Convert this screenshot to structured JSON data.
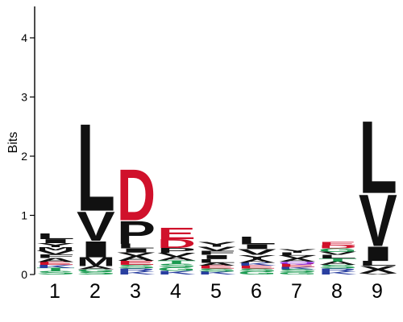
{
  "chart_data": {
    "type": "sequence-logo",
    "ylabel": "Bits",
    "ylim": [
      0,
      4.5
    ],
    "yticks": [
      "0",
      "1",
      "2",
      "3",
      "4"
    ],
    "positions": [
      "1",
      "2",
      "3",
      "4",
      "5",
      "6",
      "7",
      "8",
      "9"
    ],
    "colors": {
      "hydrophobic": "#111111",
      "acidic": "#d0112b",
      "polar": "#1a9a50",
      "basic": "#2a3fa0",
      "neutral": "#8a2be2"
    },
    "stacks": [
      [
        {
          "letter": "S",
          "height": 0.06,
          "color": "#1a9a50"
        },
        {
          "letter": "T",
          "height": 0.05,
          "color": "#1a9a50"
        },
        {
          "letter": "K",
          "height": 0.05,
          "color": "#2a3fa0"
        },
        {
          "letter": "E",
          "height": 0.05,
          "color": "#d0112b"
        },
        {
          "letter": "A",
          "height": 0.07,
          "color": "#111111"
        },
        {
          "letter": "F",
          "height": 0.06,
          "color": "#111111"
        },
        {
          "letter": "V",
          "height": 0.07,
          "color": "#111111"
        },
        {
          "letter": "M",
          "height": 0.05,
          "color": "#111111"
        },
        {
          "letter": "Y",
          "height": 0.07,
          "color": "#111111"
        },
        {
          "letter": "I",
          "height": 0.07,
          "color": "#111111"
        },
        {
          "letter": "L",
          "height": 0.1,
          "color": "#111111"
        }
      ],
      [
        {
          "letter": "S",
          "height": 0.05,
          "color": "#1a9a50"
        },
        {
          "letter": "G",
          "height": 0.04,
          "color": "#1a9a50"
        },
        {
          "letter": "A",
          "height": 0.05,
          "color": "#111111"
        },
        {
          "letter": "M",
          "height": 0.15,
          "color": "#111111"
        },
        {
          "letter": "I",
          "height": 0.28,
          "color": "#111111"
        },
        {
          "letter": "V",
          "height": 0.51,
          "color": "#111111"
        },
        {
          "letter": "L",
          "height": 1.52,
          "color": "#111111"
        }
      ],
      [
        {
          "letter": "K",
          "height": 0.05,
          "color": "#2a3fa0"
        },
        {
          "letter": "R",
          "height": 0.05,
          "color": "#2a3fa0"
        },
        {
          "letter": "S",
          "height": 0.06,
          "color": "#1a9a50"
        },
        {
          "letter": "E",
          "height": 0.07,
          "color": "#d0112b"
        },
        {
          "letter": "A",
          "height": 0.08,
          "color": "#111111"
        },
        {
          "letter": "V",
          "height": 0.06,
          "color": "#111111"
        },
        {
          "letter": "I",
          "height": 0.07,
          "color": "#111111"
        },
        {
          "letter": "L",
          "height": 0.08,
          "color": "#111111"
        },
        {
          "letter": "P",
          "height": 0.4,
          "color": "#111111"
        },
        {
          "letter": "D",
          "height": 0.89,
          "color": "#d0112b"
        }
      ],
      [
        {
          "letter": "K",
          "height": 0.06,
          "color": "#2a3fa0"
        },
        {
          "letter": "G",
          "height": 0.06,
          "color": "#1a9a50"
        },
        {
          "letter": "S",
          "height": 0.06,
          "color": "#1a9a50"
        },
        {
          "letter": "T",
          "height": 0.06,
          "color": "#1a9a50"
        },
        {
          "letter": "A",
          "height": 0.06,
          "color": "#111111"
        },
        {
          "letter": "V",
          "height": 0.07,
          "color": "#111111"
        },
        {
          "letter": "P",
          "height": 0.08,
          "color": "#111111"
        },
        {
          "letter": "D",
          "height": 0.15,
          "color": "#d0112b"
        },
        {
          "letter": "E",
          "height": 0.2,
          "color": "#d0112b"
        }
      ],
      [
        {
          "letter": "K",
          "height": 0.05,
          "color": "#2a3fa0"
        },
        {
          "letter": "S",
          "height": 0.05,
          "color": "#1a9a50"
        },
        {
          "letter": "E",
          "height": 0.05,
          "color": "#d0112b"
        },
        {
          "letter": "A",
          "height": 0.05,
          "color": "#111111"
        },
        {
          "letter": "L",
          "height": 0.06,
          "color": "#111111"
        },
        {
          "letter": "I",
          "height": 0.07,
          "color": "#111111"
        },
        {
          "letter": "F",
          "height": 0.07,
          "color": "#111111"
        },
        {
          "letter": "V",
          "height": 0.07,
          "color": "#111111"
        },
        {
          "letter": "Y",
          "height": 0.08,
          "color": "#111111"
        }
      ],
      [
        {
          "letter": "G",
          "height": 0.05,
          "color": "#1a9a50"
        },
        {
          "letter": "S",
          "height": 0.05,
          "color": "#1a9a50"
        },
        {
          "letter": "E",
          "height": 0.05,
          "color": "#d0112b"
        },
        {
          "letter": "K",
          "height": 0.05,
          "color": "#2a3fa0"
        },
        {
          "letter": "A",
          "height": 0.06,
          "color": "#111111"
        },
        {
          "letter": "Y",
          "height": 0.07,
          "color": "#111111"
        },
        {
          "letter": "V",
          "height": 0.1,
          "color": "#111111"
        },
        {
          "letter": "I",
          "height": 0.08,
          "color": "#111111"
        },
        {
          "letter": "L",
          "height": 0.14,
          "color": "#111111"
        }
      ],
      [
        {
          "letter": "G",
          "height": 0.04,
          "color": "#1a9a50"
        },
        {
          "letter": "S",
          "height": 0.05,
          "color": "#1a9a50"
        },
        {
          "letter": "K",
          "height": 0.04,
          "color": "#2a3fa0"
        },
        {
          "letter": "E",
          "height": 0.05,
          "color": "#d0112b"
        },
        {
          "letter": "Q",
          "height": 0.04,
          "color": "#8a2be2"
        },
        {
          "letter": "A",
          "height": 0.05,
          "color": "#111111"
        },
        {
          "letter": "V",
          "height": 0.05,
          "color": "#111111"
        },
        {
          "letter": "L",
          "height": 0.05,
          "color": "#111111"
        },
        {
          "letter": "Y",
          "height": 0.06,
          "color": "#111111"
        }
      ],
      [
        {
          "letter": "K",
          "height": 0.05,
          "color": "#2a3fa0"
        },
        {
          "letter": "R",
          "height": 0.05,
          "color": "#2a3fa0"
        },
        {
          "letter": "S",
          "height": 0.06,
          "color": "#1a9a50"
        },
        {
          "letter": "A",
          "height": 0.06,
          "color": "#111111"
        },
        {
          "letter": "T",
          "height": 0.05,
          "color": "#1a9a50"
        },
        {
          "letter": "L",
          "height": 0.06,
          "color": "#111111"
        },
        {
          "letter": "V",
          "height": 0.05,
          "color": "#111111"
        },
        {
          "letter": "G",
          "height": 0.06,
          "color": "#1a9a50"
        },
        {
          "letter": "D",
          "height": 0.05,
          "color": "#d0112b"
        },
        {
          "letter": "E",
          "height": 0.06,
          "color": "#d0112b"
        }
      ],
      [
        {
          "letter": "V",
          "height": 0.02,
          "color": "#111111"
        },
        {
          "letter": "X",
          "height": 0.13,
          "color": "#111111"
        },
        {
          "letter": "L",
          "height": 0.08,
          "color": "#111111"
        },
        {
          "letter": "I",
          "height": 0.25,
          "color": "#111111"
        },
        {
          "letter": "V",
          "height": 0.9,
          "color": "#111111"
        },
        {
          "letter": "L",
          "height": 1.26,
          "color": "#111111"
        }
      ]
    ]
  }
}
